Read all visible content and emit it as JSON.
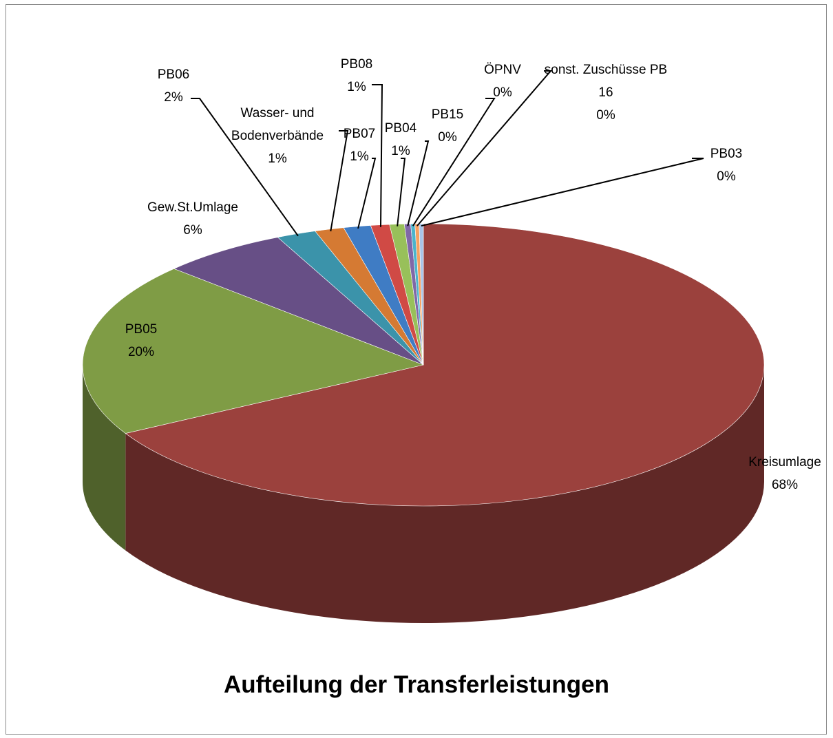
{
  "chart_data": {
    "type": "pie3d",
    "title": "Aufteilung der Transferleistungen",
    "categories": [
      "Kreisumlage",
      "PB05",
      "Gew.St.Umlage",
      "PB06",
      "Wasser- und Bodenverbände",
      "PB07",
      "PB08",
      "PB04",
      "PB15",
      "ÖPNV",
      "sonst. Zuschüsse PB 16",
      "PB03"
    ],
    "values": [
      67.6,
      20.2,
      6.1,
      1.9,
      1.4,
      1.3,
      0.9,
      0.7,
      0.3,
      0.2,
      0.2,
      0.2
    ],
    "value_labels": [
      "68%",
      "20%",
      "6%",
      "2%",
      "1%",
      "1%",
      "1%",
      "1%",
      "0%",
      "0%",
      "0%",
      "0%"
    ],
    "colors": [
      "#9b413d",
      "#7f9c45",
      "#674f86",
      "#3b93aa",
      "#d57a33",
      "#3f7cc4",
      "#d04a45",
      "#98c05a",
      "#8068a8",
      "#4bb4cc",
      "#f7a060",
      "#a8c4e8"
    ]
  }
}
